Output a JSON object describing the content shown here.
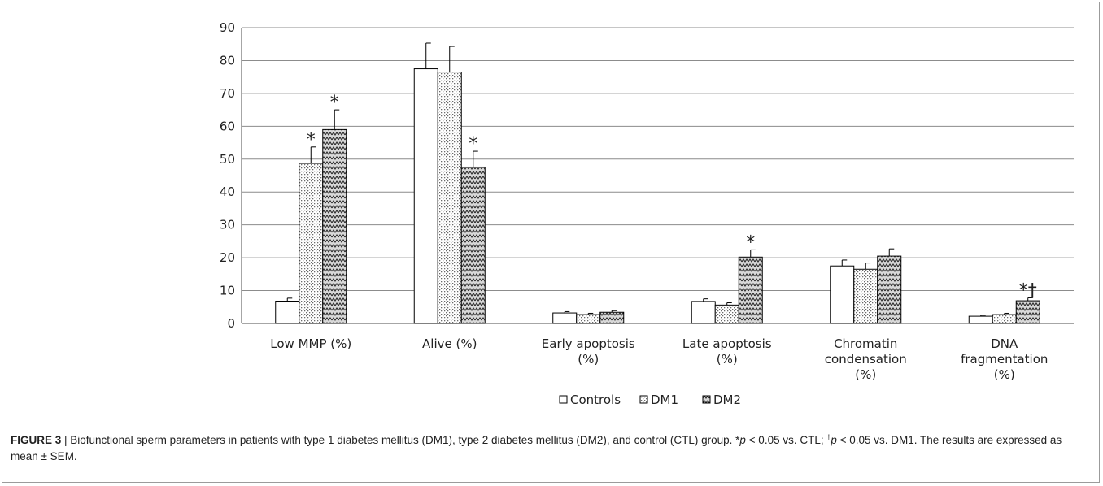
{
  "chart_data": {
    "type": "bar",
    "categories": [
      [
        "Low MMP (%)"
      ],
      [
        "Alive (%)"
      ],
      [
        "Early apoptosis",
        "(%)"
      ],
      [
        "Late apoptosis",
        "(%)"
      ],
      [
        "Chromatin",
        "condensation",
        "(%)"
      ],
      [
        "DNA",
        "fragmentation",
        "(%)"
      ]
    ],
    "series": [
      {
        "name": "Controls",
        "pattern": "plain",
        "values": [
          6.8,
          77.5,
          3.2,
          6.7,
          17.5,
          2.2
        ],
        "errors": [
          0.9,
          7.8,
          0.4,
          0.8,
          1.8,
          0.3
        ]
      },
      {
        "name": "DM1",
        "pattern": "dots",
        "values": [
          48.7,
          76.5,
          2.7,
          5.6,
          16.5,
          2.7
        ],
        "errors": [
          5.0,
          7.8,
          0.4,
          0.7,
          1.9,
          0.4
        ]
      },
      {
        "name": "DM2",
        "pattern": "zigzag",
        "values": [
          59.0,
          47.6,
          3.4,
          20.2,
          20.5,
          6.9
        ],
        "errors": [
          6.0,
          4.8,
          0.5,
          2.2,
          2.2,
          0.9
        ]
      }
    ],
    "annotations": [
      {
        "category": 0,
        "series": 1,
        "text": "*"
      },
      {
        "category": 0,
        "series": 2,
        "text": "*"
      },
      {
        "category": 1,
        "series": 2,
        "text": "*"
      },
      {
        "category": 3,
        "series": 2,
        "text": "*"
      },
      {
        "category": 5,
        "series": 2,
        "text": "*†"
      }
    ],
    "ylim": [
      0,
      90
    ],
    "yticks": [
      0,
      10,
      20,
      30,
      40,
      50,
      60,
      70,
      80,
      90
    ],
    "grid": true,
    "legend": "bottom-center",
    "legend_markers": [
      "□",
      "▤",
      "▧"
    ],
    "colors": {
      "bar_stroke": "#000000",
      "grid": "#8c8c8c",
      "error": "#000000"
    }
  },
  "caption": {
    "label": "FIGURE 3",
    "separator": " | ",
    "text_1": "Biofunctional sperm parameters in patients with type 1 diabetes mellitus (DM1), type 2 diabetes mellitus (DM2), and control (CTL) group. *",
    "p1": "p",
    "text_2": " < 0.05 vs. CTL; ",
    "dagger": "†",
    "p2": "p",
    "text_3": " < 0.05 vs. DM1. The results are expressed as mean ± SEM."
  }
}
